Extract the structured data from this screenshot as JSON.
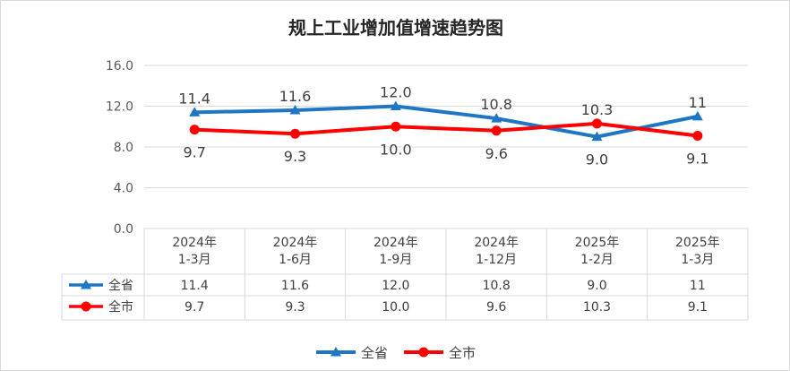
{
  "chart_data": {
    "type": "line",
    "title": "规上工业增加值增速趋势图",
    "categories": [
      [
        "2024年",
        "1-3月"
      ],
      [
        "2024年",
        "1-6月"
      ],
      [
        "2024年",
        "1-9月"
      ],
      [
        "2024年",
        "1-12月"
      ],
      [
        "2025年",
        "1-2月"
      ],
      [
        "2025年",
        "1-3月"
      ]
    ],
    "series": [
      {
        "name": "全省",
        "values": [
          11.4,
          11.6,
          12.0,
          10.8,
          9.0,
          11
        ],
        "labels": [
          "11.4",
          "11.6",
          "12.0",
          "10.8",
          "9.0",
          "11"
        ],
        "color": "#1f77c4",
        "marker": "triangle"
      },
      {
        "name": "全市",
        "values": [
          9.7,
          9.3,
          10.0,
          9.6,
          10.3,
          9.1
        ],
        "labels": [
          "9.7",
          "9.3",
          "10.0",
          "9.6",
          "10.3",
          "9.1"
        ],
        "color": "#ff0000",
        "marker": "circle"
      }
    ],
    "ylim": [
      0,
      16
    ],
    "yticks": [
      "0.0",
      "4.0",
      "8.0",
      "12.0",
      "16.0"
    ],
    "grid": true,
    "data_table": true,
    "legend": "bottom"
  }
}
